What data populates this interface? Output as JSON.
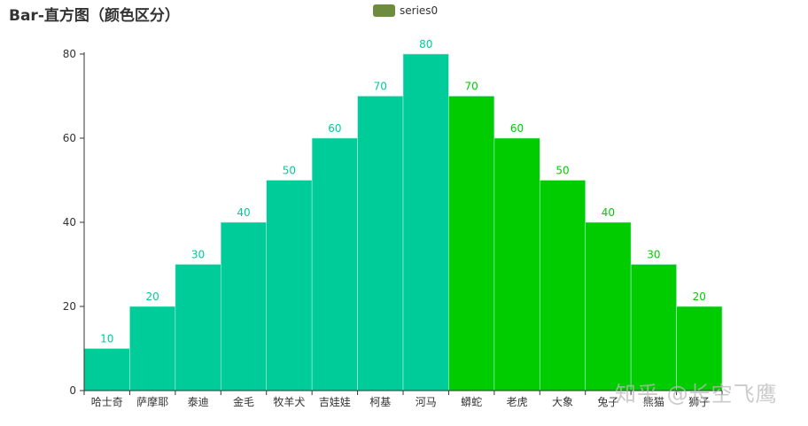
{
  "colors": {
    "background": "#ffffff",
    "axis": "#333333",
    "bar_left": "#00cc99",
    "bar_right": "#00cc00",
    "label_left": "#00cc99",
    "label_right": "#00cc00",
    "legend_swatch": "#6e8c3e",
    "bar_border": "#b0f0dc"
  },
  "watermark": "知乎 @长空飞鹰",
  "legend": {
    "items": [
      {
        "name": "series0",
        "color": "#6e8c3e"
      }
    ]
  },
  "chart_data": {
    "type": "bar",
    "title": "Bar-直方图（颜色区分）",
    "categories": [
      "哈士奇",
      "萨摩耶",
      "泰迪",
      "金毛",
      "牧羊犬",
      "吉娃娃",
      "柯基",
      "河马",
      "蟒蛇",
      "老虎",
      "大象",
      "兔子",
      "熊猫",
      "狮子"
    ],
    "series": [
      {
        "name": "series0",
        "values": [
          10,
          20,
          30,
          40,
          50,
          60,
          70,
          80,
          70,
          60,
          50,
          40,
          30,
          20
        ],
        "colors": [
          "#00cc99",
          "#00cc99",
          "#00cc99",
          "#00cc99",
          "#00cc99",
          "#00cc99",
          "#00cc99",
          "#00cc99",
          "#00cc00",
          "#00cc00",
          "#00cc00",
          "#00cc00",
          "#00cc00",
          "#00cc00"
        ]
      }
    ],
    "xlabel": "",
    "ylabel": "",
    "ylim": [
      0,
      80
    ],
    "yticks": [
      0,
      20,
      40,
      60,
      80
    ],
    "data_labels": true,
    "bar_gap": 0,
    "grid": false,
    "legend_position": "top-center"
  }
}
